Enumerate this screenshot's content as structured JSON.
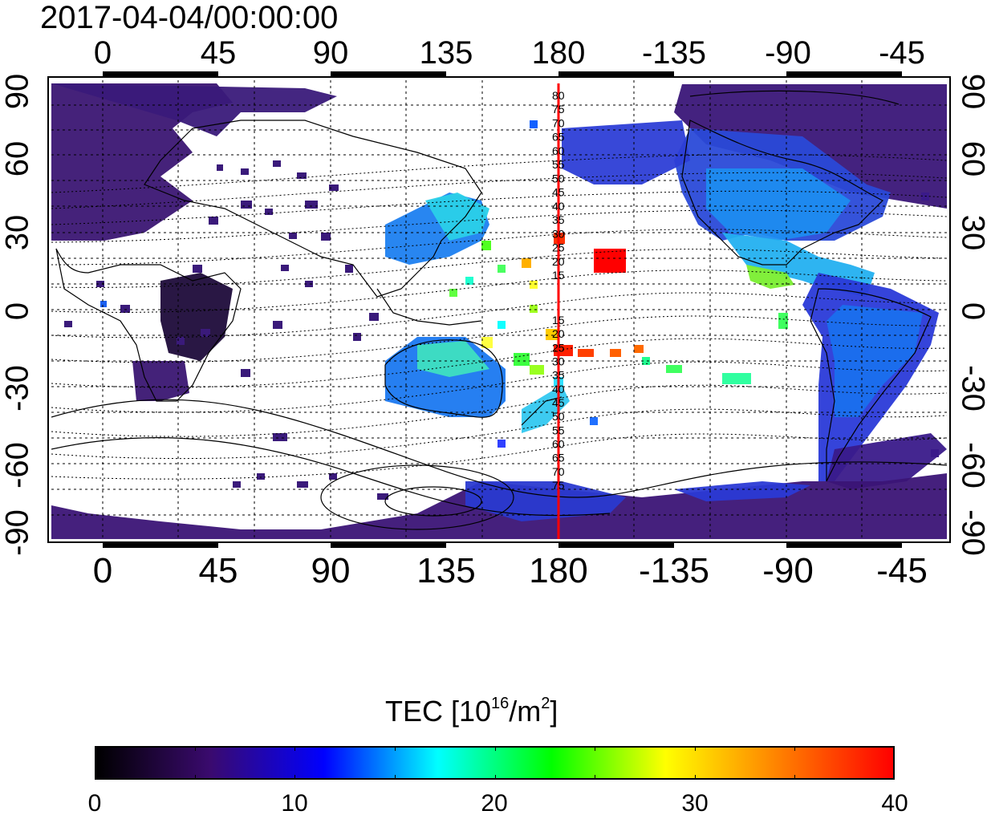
{
  "timestamp": "2017-04-04/00:00:00",
  "top_lon_ticks": [
    "0",
    "45",
    "90",
    "135",
    "180",
    "-135",
    "-90",
    "-45"
  ],
  "bottom_lon_ticks": [
    "0",
    "45",
    "90",
    "135",
    "180",
    "-135",
    "-90",
    "-45"
  ],
  "left_lat_ticks": [
    "90",
    "60",
    "30",
    "0",
    "-30",
    "-60",
    "-90"
  ],
  "right_lat_ticks": [
    "90",
    "60",
    "30",
    "0",
    "-30",
    "-60",
    "-90"
  ],
  "meridian_labels_north": [
    "80",
    "75",
    "70",
    "65",
    "60",
    "55",
    "50",
    "45",
    "40",
    "35",
    "30",
    "25",
    "20",
    "15"
  ],
  "meridian_labels_south": [
    "15",
    "20",
    "25",
    "30",
    "35",
    "40",
    "45",
    "50",
    "55",
    "60",
    "65",
    "70",
    "75"
  ],
  "colorbar": {
    "title_text": "TEC  [10",
    "title_exp": "16",
    "title_unit": "/m",
    "title_unit_exp": "2",
    "title_close": "]",
    "min": 0,
    "max": 40,
    "tick_labels": [
      "0",
      "10",
      "20",
      "30",
      "40"
    ],
    "colors": [
      "#000000",
      "#3a0a6e",
      "#0000ff",
      "#00ffff",
      "#00ff00",
      "#ffff00",
      "#ff8000",
      "#ff0000"
    ]
  },
  "meridian_line_color": "#ff0000",
  "meridian_lon": 180
}
